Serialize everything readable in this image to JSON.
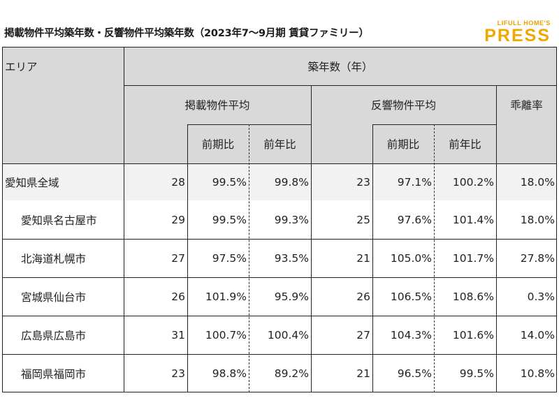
{
  "title": "掲載物件平均築年数・反響物件平均築年数（2023年7～9月期 賃貸ファミリー）",
  "logo": {
    "top": "LIFULL HOME'S",
    "main": "PRESS"
  },
  "colors": {
    "header_bg": "#d9d9d9",
    "first_row_bg": "#f2f2f2",
    "logo": "#f0a800"
  },
  "headers": {
    "area": "エリア",
    "group": "築年数（年）",
    "listed": "掲載物件平均",
    "inquired": "反響物件平均",
    "deviation": "乖離率",
    "qoq": "前期比",
    "yoy": "前年比"
  },
  "rows": [
    {
      "area": "愛知県全域",
      "listed": "28",
      "listed_qoq": "99.5%",
      "listed_yoy": "99.8%",
      "inquired": "23",
      "inquired_qoq": "97.1%",
      "inquired_yoy": "100.2%",
      "deviation": "18.0%"
    },
    {
      "area": "愛知県名古屋市",
      "listed": "29",
      "listed_qoq": "99.5%",
      "listed_yoy": "99.3%",
      "inquired": "25",
      "inquired_qoq": "97.6%",
      "inquired_yoy": "101.4%",
      "deviation": "18.0%"
    },
    {
      "area": "北海道札幌市",
      "listed": "27",
      "listed_qoq": "97.5%",
      "listed_yoy": "93.5%",
      "inquired": "21",
      "inquired_qoq": "105.0%",
      "inquired_yoy": "101.7%",
      "deviation": "27.8%"
    },
    {
      "area": "宮城県仙台市",
      "listed": "26",
      "listed_qoq": "101.9%",
      "listed_yoy": "95.9%",
      "inquired": "26",
      "inquired_qoq": "106.5%",
      "inquired_yoy": "108.6%",
      "deviation": "0.3%"
    },
    {
      "area": "広島県広島市",
      "listed": "31",
      "listed_qoq": "100.7%",
      "listed_yoy": "100.4%",
      "inquired": "27",
      "inquired_qoq": "104.3%",
      "inquired_yoy": "101.6%",
      "deviation": "14.0%"
    },
    {
      "area": "福岡県福岡市",
      "listed": "23",
      "listed_qoq": "98.8%",
      "listed_yoy": "89.2%",
      "inquired": "21",
      "inquired_qoq": "96.5%",
      "inquired_yoy": "99.5%",
      "deviation": "10.8%"
    }
  ]
}
